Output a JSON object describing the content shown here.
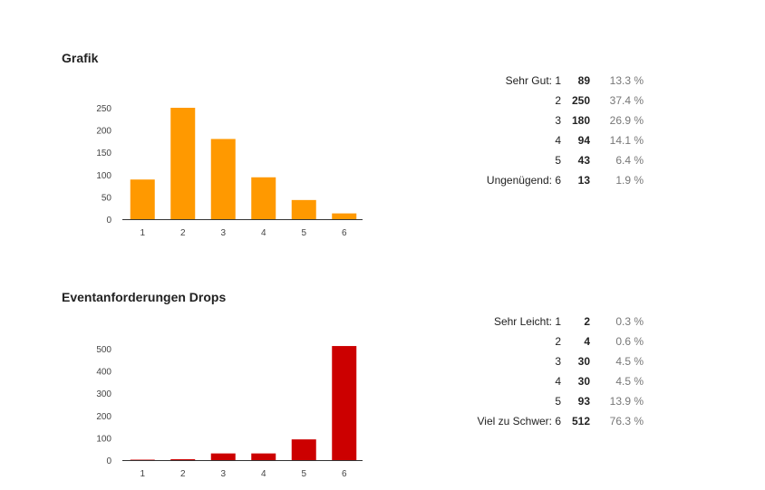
{
  "sections": [
    {
      "title": "Grafik",
      "color": "#ff9900",
      "rows": [
        {
          "label": "Sehr Gut: 1",
          "count": "89",
          "percent": "13.3 %"
        },
        {
          "label": "2",
          "count": "250",
          "percent": "37.4 %"
        },
        {
          "label": "3",
          "count": "180",
          "percent": "26.9 %"
        },
        {
          "label": "4",
          "count": "94",
          "percent": "14.1 %"
        },
        {
          "label": "5",
          "count": "43",
          "percent": "6.4 %"
        },
        {
          "label": "Ungenügend: 6",
          "count": "13",
          "percent": "1.9 %"
        }
      ]
    },
    {
      "title": "Eventanforderungen Drops",
      "color": "#cc0000",
      "rows": [
        {
          "label": "Sehr Leicht: 1",
          "count": "2",
          "percent": "0.3 %"
        },
        {
          "label": "2",
          "count": "4",
          "percent": "0.6 %"
        },
        {
          "label": "3",
          "count": "30",
          "percent": "4.5 %"
        },
        {
          "label": "4",
          "count": "30",
          "percent": "4.5 %"
        },
        {
          "label": "5",
          "count": "93",
          "percent": "13.9 %"
        },
        {
          "label": "Viel zu Schwer: 6",
          "count": "512",
          "percent": "76.3 %"
        }
      ]
    }
  ],
  "chart_data": [
    {
      "type": "bar",
      "categories": [
        "1",
        "2",
        "3",
        "4",
        "5",
        "6"
      ],
      "values": [
        89,
        250,
        180,
        94,
        43,
        13
      ],
      "yticks": [
        0,
        50,
        100,
        150,
        200,
        250
      ],
      "ylim": [
        0,
        250
      ],
      "grid": false,
      "color": "#ff9900"
    },
    {
      "type": "bar",
      "categories": [
        "1",
        "2",
        "3",
        "4",
        "5",
        "6"
      ],
      "values": [
        2,
        4,
        30,
        30,
        93,
        512
      ],
      "yticks": [
        0,
        100,
        200,
        300,
        400,
        500
      ],
      "ylim": [
        0,
        500
      ],
      "grid": false,
      "color": "#cc0000"
    }
  ]
}
